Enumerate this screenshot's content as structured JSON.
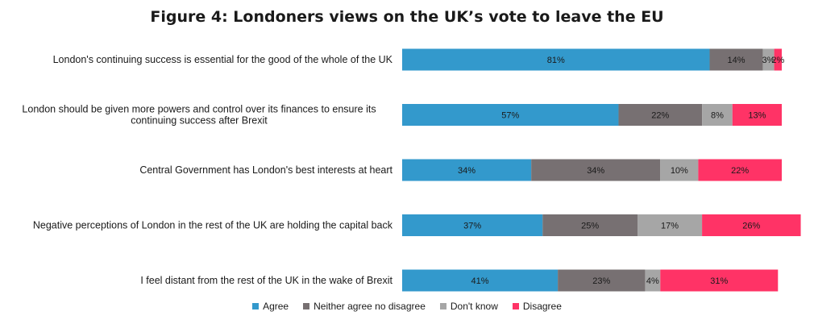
{
  "chart_data": {
    "type": "bar",
    "orientation": "horizontal",
    "stacked": true,
    "title": "Figure 4: Londoners views on the UK’s vote to leave the EU",
    "categories": [
      "London's continuing success is essential for the good of the whole of the UK",
      "London should be given more powers and control over its finances to ensure its continuing success after Brexit",
      "Central Government has London's best interests at heart",
      "Negative perceptions of London in the rest of the UK are holding the capital back",
      "I feel distant from the rest of the UK in the wake of Brexit"
    ],
    "series": [
      {
        "name": "Agree",
        "color": "#3399cc",
        "values": [
          81,
          57,
          34,
          37,
          41
        ]
      },
      {
        "name": "Neither agree no disagree",
        "color": "#777072",
        "values": [
          14,
          22,
          34,
          25,
          23
        ]
      },
      {
        "name": "Don't know",
        "color": "#a6a6a6",
        "values": [
          3,
          8,
          10,
          17,
          4
        ]
      },
      {
        "name": "Disagree",
        "color": "#ff3366",
        "values": [
          2,
          13,
          22,
          26,
          31
        ]
      }
    ],
    "xlim": [
      0,
      100
    ],
    "value_format": "{v}%",
    "legend_position": "bottom"
  }
}
